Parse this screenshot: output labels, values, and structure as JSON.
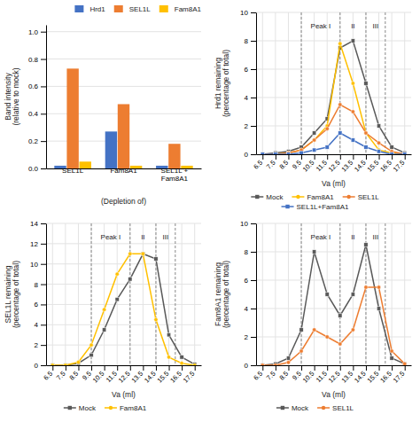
{
  "chart_data": [
    {
      "type": "bar",
      "categories": [
        "SEL1L",
        "Fam8A1",
        "SEL1L +\nFam8A1"
      ],
      "series": [
        {
          "name": "Hrd1",
          "color": "#4472c4",
          "values": [
            0.02,
            0.27,
            0.02
          ]
        },
        {
          "name": "SEL1L",
          "color": "#ed7d31",
          "values": [
            0.73,
            0.47,
            0.18
          ]
        },
        {
          "name": "Fam8A1",
          "color": "#ffc000",
          "values": [
            0.05,
            0.02,
            0.02
          ]
        }
      ],
      "xlabel": "(Depletion of)",
      "ylabel": "Band intensity\n(relative to mock)",
      "ylim": [
        0,
        1.05
      ],
      "yticks": [
        {
          "value": 0.0,
          "label": "0.0"
        },
        0.2,
        0.4,
        0.6,
        0.8,
        {
          "value": 1.0,
          "label": "1.0"
        }
      ],
      "grid": "y",
      "legend": "upper right"
    },
    {
      "type": "line",
      "x": [
        6.5,
        7.5,
        8.5,
        9.5,
        10.5,
        11.5,
        12.5,
        13.5,
        14.5,
        15.5,
        16.5,
        17.5
      ],
      "series": [
        {
          "name": "Mock",
          "color": "#595959",
          "marker": "square",
          "values": [
            0.0,
            0.1,
            0.2,
            0.5,
            1.5,
            2.5,
            7.5,
            8.0,
            5.0,
            2.0,
            0.5,
            0.1
          ]
        },
        {
          "name": "Fam8A1",
          "color": "#ffc000",
          "marker": "circle",
          "values": [
            0.0,
            0.0,
            0.1,
            0.3,
            1.0,
            2.0,
            7.8,
            5.0,
            1.5,
            0.3,
            0.1,
            0.0
          ]
        },
        {
          "name": "SEL1L",
          "color": "#ed7d31",
          "marker": "circle",
          "values": [
            0.0,
            0.0,
            0.1,
            0.3,
            1.0,
            1.8,
            3.5,
            3.0,
            1.5,
            0.8,
            0.2,
            0.0
          ]
        },
        {
          "name": "SEL1L+Fam8A1",
          "color": "#4472c4",
          "marker": "square",
          "values": [
            0.0,
            0.0,
            0.0,
            0.1,
            0.3,
            0.5,
            1.5,
            1.0,
            0.5,
            0.2,
            0.0,
            0.0
          ]
        }
      ],
      "xlabel": "Va (ml)",
      "ylabel": "Hrd1 remaining\n(percentage of total)",
      "xlim": [
        6.0,
        18.0
      ],
      "xticks": [
        6.5,
        7.5,
        8.5,
        9.5,
        10.5,
        11.5,
        12.5,
        13.5,
        14.5,
        15.5,
        16.5,
        17.5
      ],
      "ylim": [
        0,
        10
      ],
      "yticks": [
        0,
        2,
        4,
        6,
        8,
        10
      ],
      "vlines": [
        9.5,
        12.5,
        14.5,
        16.0
      ],
      "annotations": [
        {
          "text": "Peak I",
          "x": 11.0
        },
        {
          "text": "II",
          "x": 13.5
        },
        {
          "text": "III",
          "x": 15.25
        }
      ],
      "grid": true,
      "legend": "lower center"
    },
    {
      "type": "line",
      "x": [
        6.5,
        7.5,
        8.5,
        9.5,
        10.5,
        11.5,
        12.5,
        13.5,
        14.5,
        15.5,
        16.5,
        17.5
      ],
      "series": [
        {
          "name": "Mock",
          "color": "#595959",
          "marker": "square",
          "values": [
            0.0,
            0.0,
            0.2,
            1.0,
            3.5,
            6.5,
            8.5,
            11.0,
            10.5,
            3.0,
            0.8,
            0.1
          ]
        },
        {
          "name": "Fam8A1",
          "color": "#ffc000",
          "marker": "circle",
          "values": [
            0.0,
            0.0,
            0.3,
            2.0,
            5.5,
            9.0,
            11.0,
            11.0,
            4.5,
            0.8,
            0.2,
            0.0
          ]
        }
      ],
      "xlabel": "Va (ml)",
      "ylabel": "SEL1L remaining\n(percentage of total)",
      "xlim": [
        6.0,
        18.0
      ],
      "xticks": [
        6.5,
        7.5,
        8.5,
        9.5,
        10.5,
        11.5,
        12.5,
        13.5,
        14.5,
        15.5,
        16.5,
        17.5
      ],
      "ylim": [
        0,
        14
      ],
      "yticks": [
        0,
        2,
        4,
        6,
        8,
        10,
        12,
        14
      ],
      "vlines": [
        9.5,
        12.5,
        14.5,
        16.0
      ],
      "annotations": [
        {
          "text": "Peak I",
          "x": 11.0
        },
        {
          "text": "II",
          "x": 13.5
        },
        {
          "text": "III",
          "x": 15.25
        }
      ],
      "grid": true,
      "legend": "lower center"
    },
    {
      "type": "line",
      "x": [
        6.5,
        7.5,
        8.5,
        9.5,
        10.5,
        11.5,
        12.5,
        13.5,
        14.5,
        15.5,
        16.5,
        17.5
      ],
      "series": [
        {
          "name": "Mock",
          "color": "#595959",
          "marker": "square",
          "values": [
            0.0,
            0.1,
            0.5,
            2.5,
            8.0,
            5.0,
            3.5,
            5.0,
            8.5,
            4.0,
            0.5,
            0.1
          ]
        },
        {
          "name": "SEL1L",
          "color": "#ed7d31",
          "marker": "circle",
          "values": [
            0.0,
            0.0,
            0.2,
            1.0,
            2.5,
            2.0,
            1.5,
            2.5,
            5.5,
            5.5,
            1.0,
            0.1
          ]
        }
      ],
      "xlabel": "Va (ml)",
      "ylabel": "Fam8A1 remaining\n(percentage of total)",
      "xlim": [
        6.0,
        18.0
      ],
      "xticks": [
        6.5,
        7.5,
        8.5,
        9.5,
        10.5,
        11.5,
        12.5,
        13.5,
        14.5,
        15.5,
        16.5,
        17.5
      ],
      "ylim": [
        0,
        10
      ],
      "yticks": [
        0,
        2,
        4,
        6,
        8,
        10
      ],
      "vlines": [
        9.5,
        12.5,
        14.5,
        16.0
      ],
      "annotations": [
        {
          "text": "Peak I",
          "x": 11.0
        },
        {
          "text": "II",
          "x": 13.5
        },
        {
          "text": "III",
          "x": 15.25
        }
      ],
      "grid": true,
      "legend": "lower center"
    }
  ]
}
